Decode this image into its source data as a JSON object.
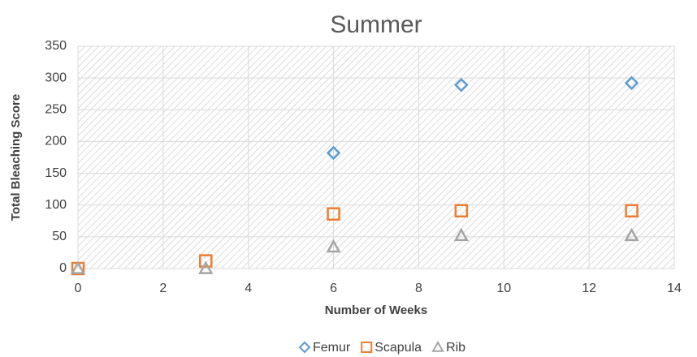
{
  "chart_data": {
    "type": "scatter",
    "title": "Summer",
    "x_label": "Number of Weeks",
    "y_label": "Total Bleaching Score",
    "xlim": [
      0,
      14
    ],
    "xticks": [
      0,
      2,
      4,
      6,
      8,
      10,
      12,
      14
    ],
    "ylim": [
      0,
      350
    ],
    "yticks": [
      0,
      50,
      100,
      150,
      200,
      250,
      300,
      350
    ],
    "grid": true,
    "legend": "bottom",
    "series": [
      {
        "name": "Femur",
        "color": "#5b9bd5",
        "marker": "diamond",
        "x": [
          6,
          9,
          13
        ],
        "values": [
          182,
          289,
          292
        ]
      },
      {
        "name": "Scapula",
        "color": "#ed7d31",
        "marker": "square",
        "x": [
          0,
          3,
          6,
          9,
          13
        ],
        "values": [
          0,
          12,
          86,
          91,
          91
        ]
      },
      {
        "name": "Rib",
        "color": "#a5a5a5",
        "marker": "triangle",
        "x": [
          0,
          3,
          6,
          9,
          13
        ],
        "values": [
          0,
          0,
          34,
          52,
          52
        ]
      }
    ]
  }
}
